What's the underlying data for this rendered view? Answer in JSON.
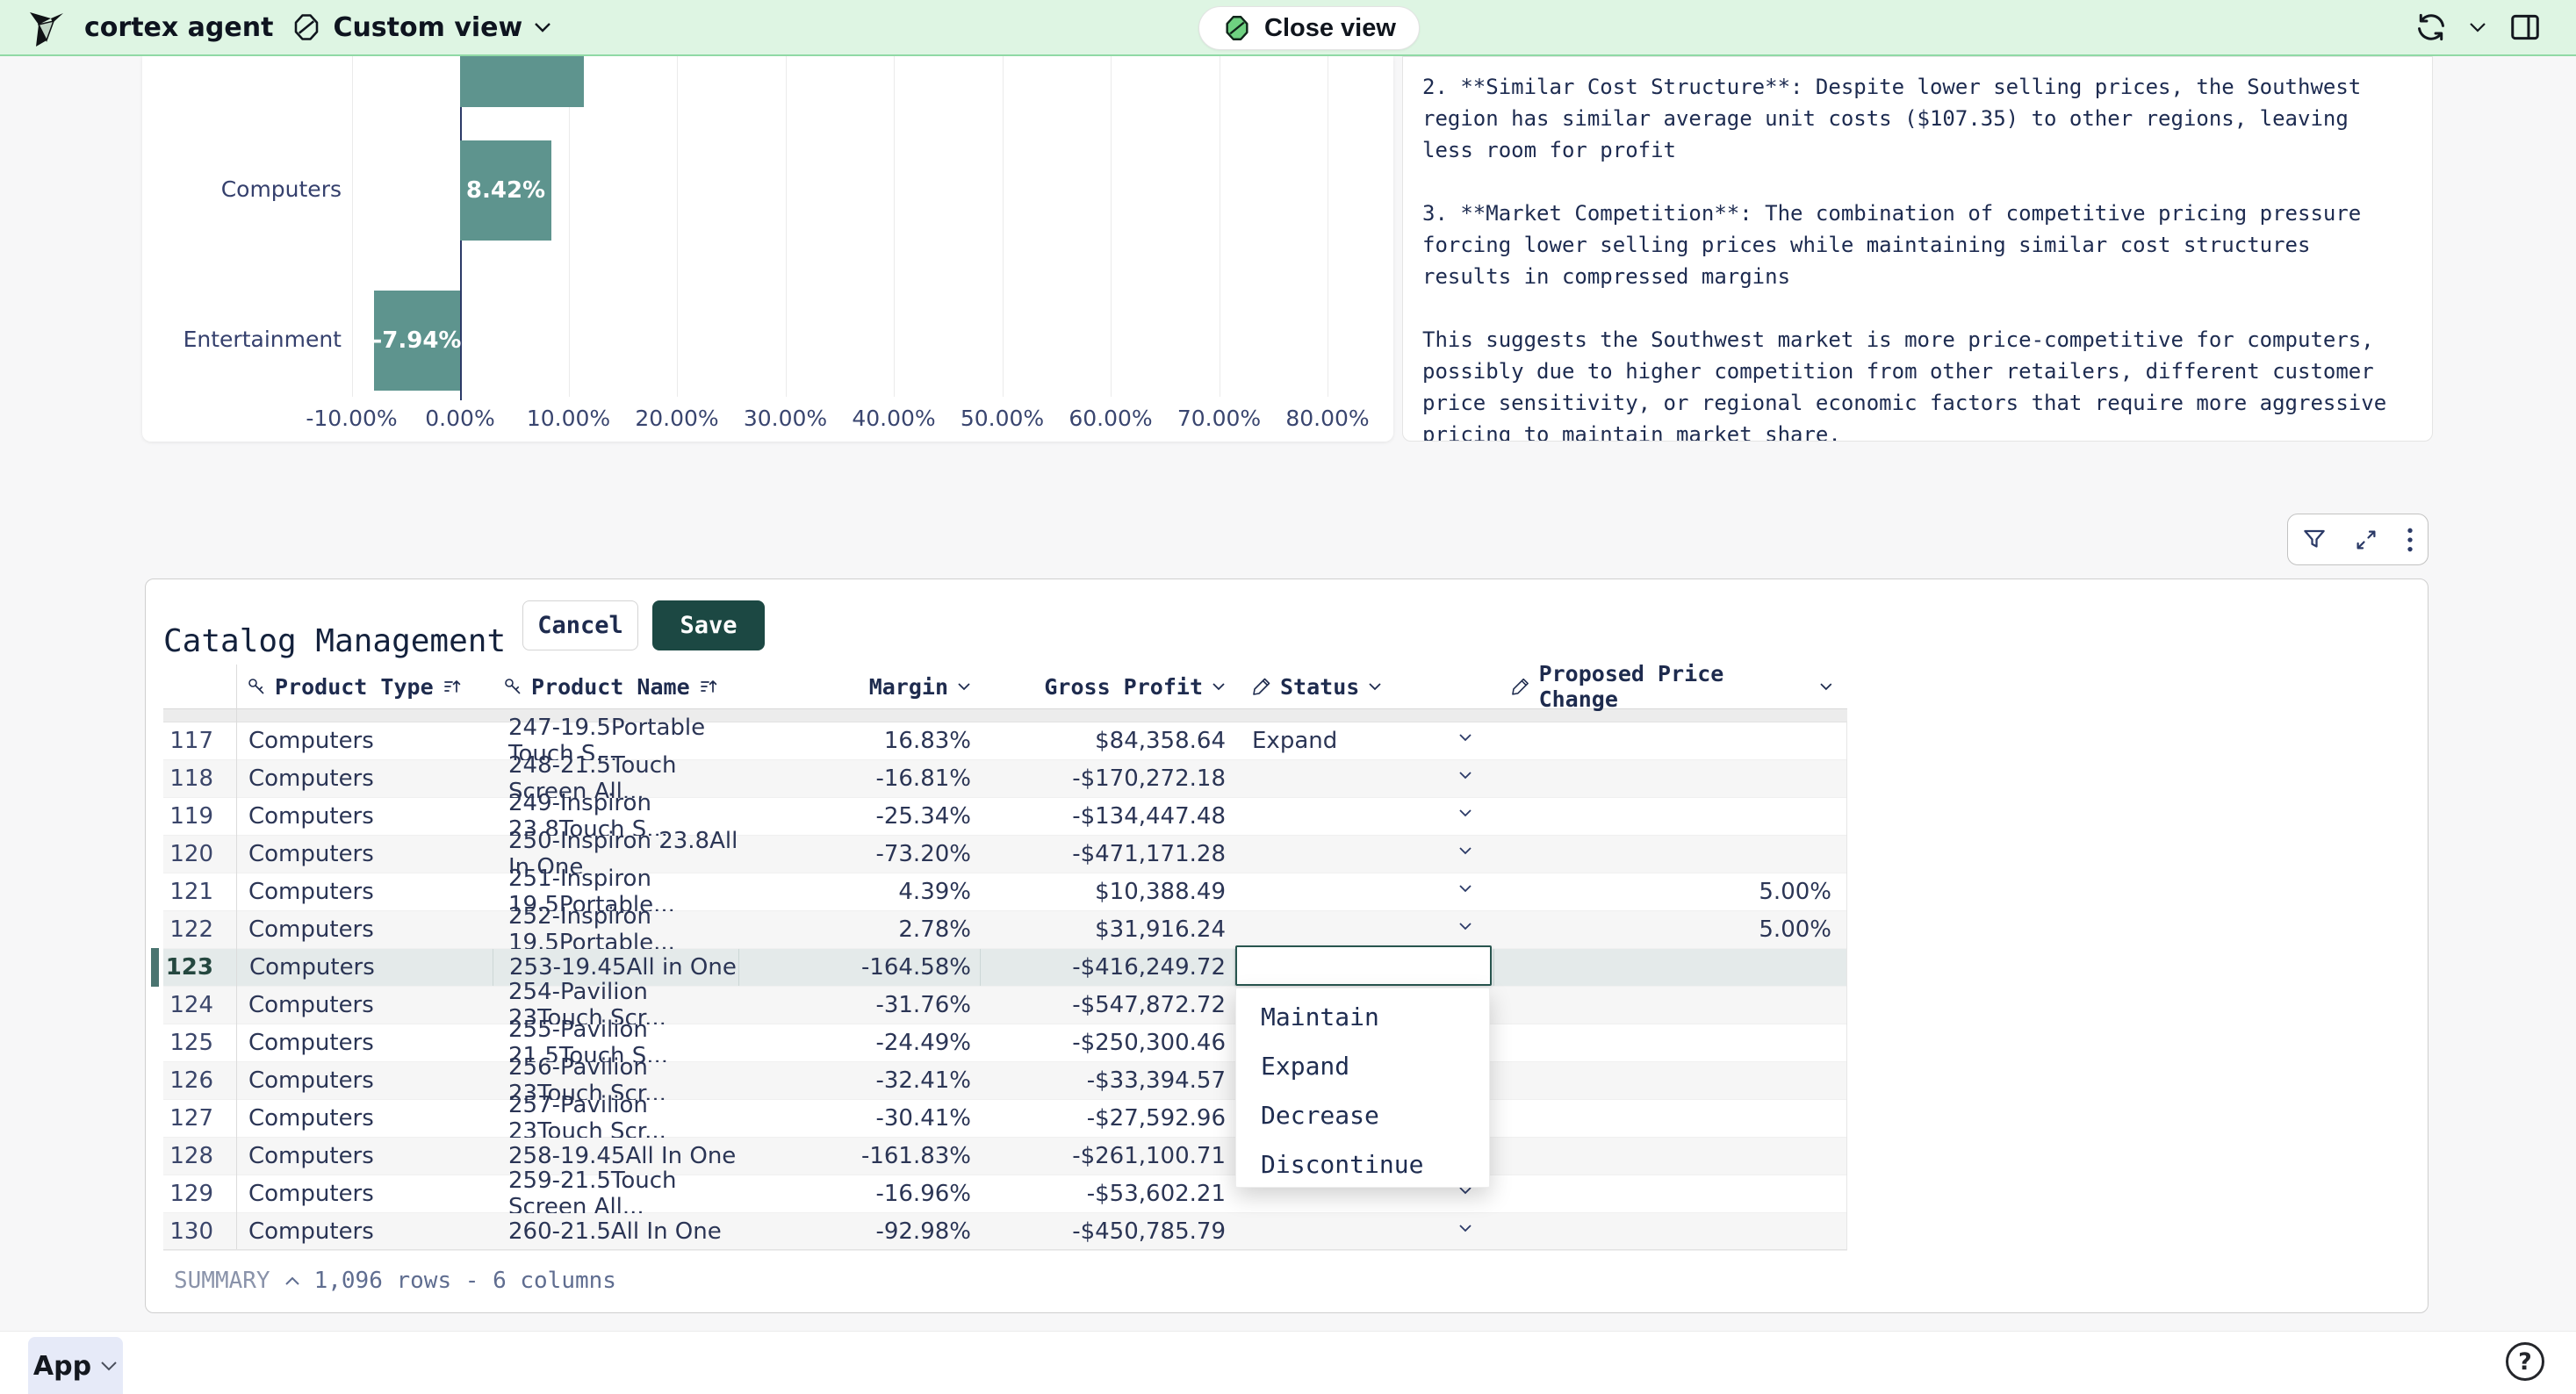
{
  "topbar": {
    "app_name": "cortex agent",
    "view_label": "Custom view",
    "close_view_label": "Close view"
  },
  "chart_data": {
    "type": "bar",
    "orientation": "horizontal",
    "categories": [
      "Computers",
      "Entertainment"
    ],
    "values": [
      8.42,
      -7.94
    ],
    "value_labels": [
      "8.42%",
      "-7.94%"
    ],
    "clipped_top_bar_value": 11.4,
    "x_ticks": [
      "-10.00%",
      "0.00%",
      "10.00%",
      "20.00%",
      "30.00%",
      "40.00%",
      "50.00%",
      "60.00%",
      "70.00%",
      "80.00%"
    ],
    "x_tick_values": [
      -10,
      0,
      10,
      20,
      30,
      40,
      50,
      60,
      70,
      80
    ],
    "xlim": [
      -13,
      83
    ],
    "grid": true,
    "bar_color": "#5e948e",
    "note": "top bar partially clipped by scroll, no visible category label"
  },
  "analysis": {
    "text": "2. **Similar Cost Structure**: Despite lower selling prices, the Southwest\nregion has similar average unit costs ($107.35) to other regions, leaving\nless room for profit\n\n3. **Market Competition**: The combination of competitive pricing pressure\nforcing lower selling prices while maintaining similar cost structures\nresults in compressed margins\n\nThis suggests the Southwest market is more price-competitive for computers,\npossibly due to higher competition from other retailers, different customer\nprice sensitivity, or regional economic factors that require more aggressive\npricing to maintain market share."
  },
  "catalog": {
    "title": "Catalog Management",
    "cancel_label": "Cancel",
    "save_label": "Save",
    "columns": [
      {
        "label": "Product Type"
      },
      {
        "label": "Product Name"
      },
      {
        "label": "Margin"
      },
      {
        "label": "Gross Profit"
      },
      {
        "label": "Status"
      },
      {
        "label": "Proposed Price Change"
      }
    ],
    "rows": [
      {
        "num": "117",
        "type": "Computers",
        "name": "247-19.5Portable Touch S...",
        "margin": "16.83%",
        "gross": "$84,358.64",
        "status": "Expand",
        "ppc": "",
        "chevron": true
      },
      {
        "num": "118",
        "type": "Computers",
        "name": "248-21.5Touch Screen All...",
        "margin": "-16.81%",
        "gross": "-$170,272.18",
        "status": "",
        "ppc": "",
        "chevron": true
      },
      {
        "num": "119",
        "type": "Computers",
        "name": "249-Inspiron 23.8Touch S...",
        "margin": "-25.34%",
        "gross": "-$134,447.48",
        "status": "",
        "ppc": "",
        "chevron": true
      },
      {
        "num": "120",
        "type": "Computers",
        "name": "250-Inspiron 23.8All In One",
        "margin": "-73.20%",
        "gross": "-$471,171.28",
        "status": "",
        "ppc": "",
        "chevron": true
      },
      {
        "num": "121",
        "type": "Computers",
        "name": "251-Inspiron 19.5Portable...",
        "margin": "4.39%",
        "gross": "$10,388.49",
        "status": "",
        "ppc": "5.00%",
        "chevron": true
      },
      {
        "num": "122",
        "type": "Computers",
        "name": "252-Inspiron 19.5Portable...",
        "margin": "2.78%",
        "gross": "$31,916.24",
        "status": "",
        "ppc": "5.00%",
        "chevron": true
      },
      {
        "num": "123",
        "type": "Computers",
        "name": "253-19.45All in One",
        "margin": "-164.58%",
        "gross": "-$416,249.72",
        "status": "",
        "ppc": "",
        "chevron": false,
        "selected": true,
        "editing": true
      },
      {
        "num": "124",
        "type": "Computers",
        "name": "254-Pavilion 23Touch Scr...",
        "margin": "-31.76%",
        "gross": "-$547,872.72",
        "status": "",
        "ppc": "",
        "chevron": true
      },
      {
        "num": "125",
        "type": "Computers",
        "name": "255-Pavilion 21.5Touch S...",
        "margin": "-24.49%",
        "gross": "-$250,300.46",
        "status": "",
        "ppc": "",
        "chevron": true
      },
      {
        "num": "126",
        "type": "Computers",
        "name": "256-Pavilion 23Touch Scr...",
        "margin": "-32.41%",
        "gross": "-$33,394.57",
        "status": "",
        "ppc": "",
        "chevron": true
      },
      {
        "num": "127",
        "type": "Computers",
        "name": "257-Pavilion 23Touch Scr...",
        "margin": "-30.41%",
        "gross": "-$27,592.96",
        "status": "",
        "ppc": "",
        "chevron": true
      },
      {
        "num": "128",
        "type": "Computers",
        "name": "258-19.45All In One",
        "margin": "-161.83%",
        "gross": "-$261,100.71",
        "status": "",
        "ppc": "",
        "chevron": true
      },
      {
        "num": "129",
        "type": "Computers",
        "name": "259-21.5Touch Screen All...",
        "margin": "-16.96%",
        "gross": "-$53,602.21",
        "status": "",
        "ppc": "",
        "chevron": true
      },
      {
        "num": "130",
        "type": "Computers",
        "name": "260-21.5All In One",
        "margin": "-92.98%",
        "gross": "-$450,785.79",
        "status": "",
        "ppc": "",
        "chevron": true
      }
    ],
    "status_input_value": "",
    "summary_label": "SUMMARY",
    "summary_text": "1,096 rows - 6 columns"
  },
  "status_dropdown": {
    "options": [
      "Maintain",
      "Expand",
      "Decrease",
      "Discontinue"
    ]
  },
  "footer": {
    "app_label": "App",
    "help_label": "?"
  },
  "colors": {
    "topbar_bg": "#def5e3",
    "bar_teal": "#5e948e",
    "save_green": "#1c4843",
    "selected_row": "#e4eaea",
    "navy_text": "#1e2b4e"
  }
}
